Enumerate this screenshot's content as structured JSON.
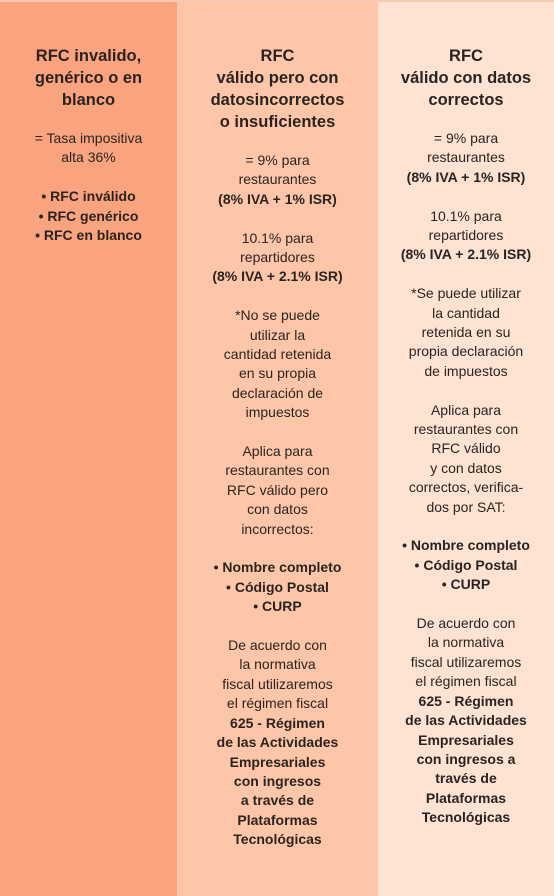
{
  "columns": [
    {
      "title": [
        "RFC invalido,",
        "genérico o en",
        "blanco"
      ],
      "blocks": [
        {
          "lines": [
            "= Tasa impositiva",
            "alta 36%"
          ],
          "bold_lines": []
        },
        {
          "lines": [],
          "bold_lines": [
            "• RFC inválido",
            "• RFC genérico",
            "• RFC en blanco"
          ]
        }
      ]
    },
    {
      "title": [
        "RFC",
        "válido pero con",
        "datosincorrectos",
        "o insuficientes"
      ],
      "blocks": [
        {
          "lines": [
            "= 9% para",
            "restaurantes"
          ],
          "bold_lines": [
            "(8% IVA + 1% ISR)"
          ]
        },
        {
          "lines": [
            "10.1% para",
            "repartidores"
          ],
          "bold_lines": [
            "(8% IVA + 2.1% ISR)"
          ]
        },
        {
          "lines": [
            "*No se puede",
            "utilizar la",
            "cantidad retenida",
            "en su propia",
            "declaración de",
            "impuestos"
          ],
          "bold_lines": []
        },
        {
          "lines": [
            "Aplica para",
            "restaurantes con",
            "RFC válido pero",
            "con datos",
            "incorrectos:"
          ],
          "bold_lines": []
        },
        {
          "lines": [],
          "bold_lines": [
            "• Nombre completo",
            "• Código Postal",
            "• CURP"
          ]
        },
        {
          "lines": [
            "De acuerdo con",
            "la normativa",
            "fiscal utilizaremos",
            "el régimen fiscal"
          ],
          "bold_lines": [
            "625 - Régimen",
            "de las Actividades",
            "Empresariales",
            "con ingresos",
            "a través de",
            "Plataformas",
            "Tecnológicas"
          ]
        }
      ]
    },
    {
      "title": [
        "RFC",
        "válido con datos",
        "correctos"
      ],
      "blocks": [
        {
          "lines": [
            "= 9% para",
            "restaurantes"
          ],
          "bold_lines": [
            "(8% IVA + 1% ISR)"
          ]
        },
        {
          "lines": [
            "10.1% para",
            "repartidores"
          ],
          "bold_lines": [
            "(8% IVA + 2.1% ISR)"
          ]
        },
        {
          "lines": [
            "*Se puede utilizar",
            "la cantidad",
            "retenida en su",
            "propia declaración",
            "de impuestos"
          ],
          "bold_lines": []
        },
        {
          "lines": [
            "Aplica para",
            "restaurantes con",
            "RFC válido",
            "y con datos",
            "correctos, verifica-",
            "dos por SAT:"
          ],
          "bold_lines": []
        },
        {
          "lines": [],
          "bold_lines": [
            "• Nombre completo",
            "• Código Postal",
            "• CURP"
          ]
        },
        {
          "lines": [
            "De acuerdo con",
            "la normativa",
            "fiscal utilizaremos",
            "el régimen fiscal"
          ],
          "bold_lines": [
            "625 - Régimen",
            "de las Actividades",
            "Empresariales",
            "con ingresos a",
            "través de",
            "Plataformas",
            "Tecnológicas"
          ]
        }
      ]
    }
  ]
}
